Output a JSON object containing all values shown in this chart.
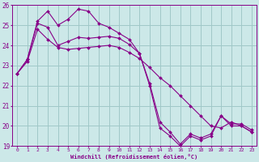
{
  "xlabel": "Windchill (Refroidissement éolien,°C)",
  "bg_color": "#cce8e8",
  "grid_color": "#a0c8c8",
  "line_color": "#880088",
  "xlim": [
    -0.5,
    23.5
  ],
  "ylim": [
    19,
    26
  ],
  "yticks": [
    19,
    20,
    21,
    22,
    23,
    24,
    25,
    26
  ],
  "xticks": [
    0,
    1,
    2,
    3,
    4,
    5,
    6,
    7,
    8,
    9,
    10,
    11,
    12,
    13,
    14,
    15,
    16,
    17,
    18,
    19,
    20,
    21,
    22,
    23
  ],
  "series1_x": [
    0,
    1,
    2,
    3,
    4,
    5,
    6,
    7,
    8,
    9,
    10,
    11,
    12,
    13,
    14,
    15,
    16,
    17,
    18,
    19,
    20,
    21,
    22,
    23
  ],
  "series1_y": [
    22.6,
    23.3,
    25.2,
    25.7,
    25.0,
    25.3,
    25.8,
    25.7,
    25.1,
    24.9,
    24.6,
    24.3,
    23.6,
    22.0,
    19.9,
    19.5,
    19.0,
    19.5,
    19.3,
    19.5,
    20.5,
    20.0,
    20.0,
    19.7
  ],
  "series2_x": [
    0,
    1,
    2,
    3,
    4,
    5,
    6,
    7,
    8,
    9,
    10,
    11,
    12,
    13,
    14,
    15,
    16,
    17,
    18,
    19,
    20,
    21,
    22,
    23
  ],
  "series2_y": [
    22.6,
    23.3,
    25.1,
    24.9,
    24.0,
    24.2,
    24.4,
    24.35,
    24.4,
    24.45,
    24.35,
    24.05,
    23.6,
    22.1,
    20.2,
    19.7,
    19.1,
    19.6,
    19.4,
    19.6,
    20.5,
    20.1,
    20.1,
    19.8
  ],
  "series3_x": [
    0,
    1,
    2,
    3,
    4,
    5,
    6,
    7,
    8,
    9,
    10,
    11,
    12,
    13,
    14,
    15,
    16,
    17,
    18,
    19,
    20,
    21,
    22,
    23
  ],
  "series3_y": [
    22.6,
    23.2,
    24.8,
    24.3,
    23.9,
    23.8,
    23.85,
    23.9,
    23.95,
    24.0,
    23.9,
    23.65,
    23.35,
    22.9,
    22.4,
    22.0,
    21.5,
    21.0,
    20.5,
    20.0,
    19.9,
    20.2,
    20.0,
    19.7
  ]
}
